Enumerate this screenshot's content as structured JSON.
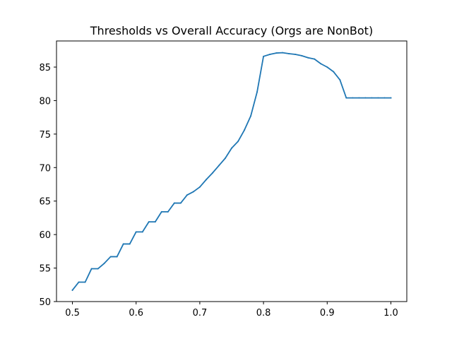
{
  "chart_data": {
    "type": "line",
    "title": "Thresholds vs Overall Accuracy (Orgs are NonBot)",
    "xlabel": "",
    "ylabel": "",
    "xlim": [
      0.475,
      1.025
    ],
    "ylim": [
      50,
      88.9
    ],
    "xticks": [
      0.5,
      0.6,
      0.7,
      0.8,
      0.9,
      1.0
    ],
    "xtick_labels": [
      "0.5",
      "0.6",
      "0.7",
      "0.8",
      "0.9",
      "1.0"
    ],
    "yticks": [
      50,
      55,
      60,
      65,
      70,
      75,
      80,
      85
    ],
    "ytick_labels": [
      "50",
      "55",
      "60",
      "65",
      "70",
      "75",
      "80",
      "85"
    ],
    "grid": false,
    "line_color": "#1f77b4",
    "series": [
      {
        "x": [
          0.5,
          0.51,
          0.52,
          0.53,
          0.54,
          0.55,
          0.56,
          0.57,
          0.58,
          0.59,
          0.6,
          0.61,
          0.62,
          0.63,
          0.64,
          0.65,
          0.66,
          0.67,
          0.68,
          0.69,
          0.7,
          0.71,
          0.72,
          0.73,
          0.74,
          0.75,
          0.76,
          0.77,
          0.78,
          0.79,
          0.8,
          0.81,
          0.82,
          0.83,
          0.84,
          0.85,
          0.86,
          0.87,
          0.88,
          0.89,
          0.9,
          0.91,
          0.92,
          0.93,
          0.94,
          0.95,
          0.96,
          0.97,
          0.98,
          0.99,
          1.0
        ],
        "y": [
          51.7,
          52.9,
          52.9,
          54.9,
          54.9,
          55.7,
          56.7,
          56.7,
          58.6,
          58.6,
          60.4,
          60.4,
          61.9,
          61.9,
          63.4,
          63.4,
          64.7,
          64.7,
          65.9,
          66.4,
          67.1,
          68.2,
          69.2,
          70.3,
          71.4,
          72.9,
          73.9,
          75.6,
          77.7,
          81.3,
          86.6,
          86.9,
          87.1,
          87.15,
          87.0,
          86.9,
          86.7,
          86.4,
          86.2,
          85.5,
          85.0,
          84.3,
          83.1,
          80.4,
          80.4,
          80.4,
          80.4,
          80.4,
          80.4,
          80.4,
          80.4
        ]
      }
    ]
  }
}
